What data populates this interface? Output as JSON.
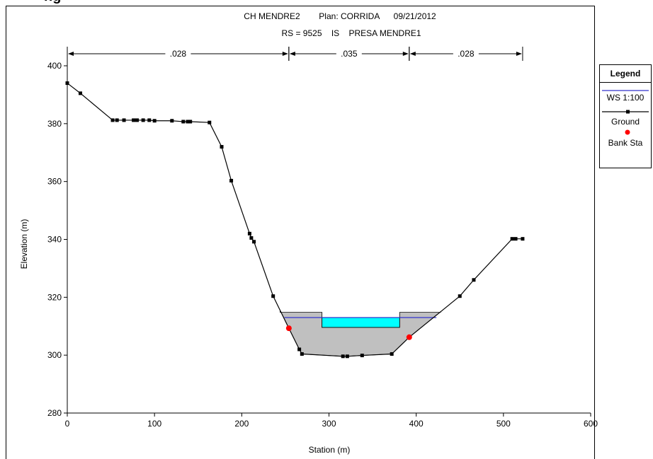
{
  "header_cut": "ng",
  "chart_data": {
    "type": "line",
    "title": "CH MENDRE2        Plan: CORRIDA      09/21/2012",
    "subtitle": "RS = 9525    IS    PRESA MENDRE1",
    "xlabel": "Station (m)",
    "ylabel": "Elevation (m)",
    "xlim": [
      0,
      600
    ],
    "ylim": [
      280,
      400
    ],
    "xticks": [
      0,
      100,
      200,
      300,
      400,
      500,
      600
    ],
    "yticks": [
      280,
      300,
      320,
      340,
      360,
      380,
      400
    ],
    "mannings": [
      {
        "label": ".028",
        "from": 0,
        "to": 254
      },
      {
        "label": ".035",
        "from": 254,
        "to": 392
      },
      {
        "label": ".028",
        "from": 392,
        "to": 522
      }
    ],
    "ground": {
      "name": "Ground",
      "color": "#000000",
      "x": [
        0,
        15,
        52,
        57,
        65,
        76,
        80,
        87,
        94,
        100,
        120,
        133,
        138,
        141,
        163,
        177,
        188,
        209,
        211,
        214,
        236,
        254,
        266,
        269,
        316,
        321,
        338,
        372,
        392,
        450,
        466,
        510,
        514,
        522
      ],
      "y": [
        394,
        390.5,
        381.2,
        381.2,
        381.2,
        381.2,
        381.2,
        381.2,
        381.2,
        381,
        381,
        380.7,
        380.7,
        380.7,
        380.4,
        372,
        360.3,
        342,
        340.5,
        339.2,
        320.4,
        309.3,
        302,
        300.4,
        299.6,
        299.6,
        299.9,
        300.4,
        306.2,
        320.4,
        326,
        340.2,
        340.2,
        340.2
      ]
    },
    "ws": {
      "name": "WS 1:100",
      "color": "#3333cc",
      "elevation": 313
    },
    "bank_stations": {
      "name": "Bank Sta",
      "color": "#ff0000",
      "x": [
        254,
        392
      ],
      "y": [
        309.3,
        306.2
      ]
    },
    "structure": {
      "deck_top": 314.8,
      "deck_low_chord": 313.0,
      "left_abutment": [
        244,
        292
      ],
      "right_abutment": [
        381,
        428
      ],
      "opening": [
        292,
        381
      ],
      "opening_bottom": 309.6
    },
    "colors": {
      "fill": "#c0c0c0",
      "opening": "#00ffff",
      "marker": "#000000"
    },
    "legend": {
      "title": "Legend",
      "entries": [
        "WS 1:100",
        "Ground",
        "Bank Sta"
      ],
      "placement": "right"
    }
  }
}
